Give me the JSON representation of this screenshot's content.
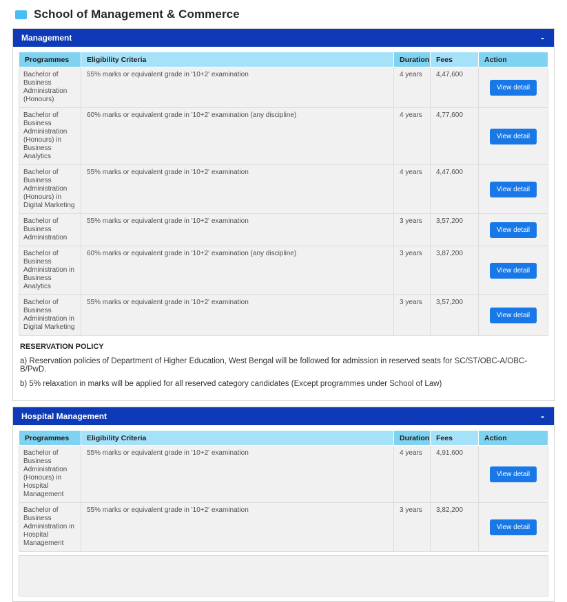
{
  "page": {
    "title": "School of Management & Commerce"
  },
  "ui": {
    "view_detail_label": "View detail",
    "collapse_icon": "-"
  },
  "table": {
    "headers": [
      "Programmes",
      "Eligibility Criteria",
      "Duration",
      "Fees",
      "Action"
    ]
  },
  "sections": [
    {
      "title": "Management",
      "rows": [
        {
          "programme": "Bachelor of Business Administration (Honours)",
          "eligibility": "55% marks or equivalent grade in '10+2' examination",
          "duration": "4 years",
          "fees": "4,47,600"
        },
        {
          "programme": "Bachelor of Business Administration (Honours) in Business Analytics",
          "eligibility": "60% marks or equivalent grade in '10+2' examination (any discipline)",
          "duration": "4 years",
          "fees": "4,77,600"
        },
        {
          "programme": "Bachelor of Business Administration (Honours) in Digital Marketing",
          "eligibility": "55% marks or equivalent grade in '10+2' examination",
          "duration": "4 years",
          "fees": "4,47,600"
        },
        {
          "programme": "Bachelor of Business Administration",
          "eligibility": "55% marks or equivalent grade in '10+2' examination",
          "duration": "3 years",
          "fees": "3,57,200"
        },
        {
          "programme": "Bachelor of Business Administration in Business Analytics",
          "eligibility": "60% marks or equivalent grade in '10+2' examination (any discipline)",
          "duration": "3 years",
          "fees": "3,87,200"
        },
        {
          "programme": "Bachelor of Business Administration in Digital Marketing",
          "eligibility": "55% marks or equivalent grade in '10+2' examination",
          "duration": "3 years",
          "fees": "3,57,200"
        }
      ],
      "reservation_policy": {
        "heading": "RESERVATION POLICY",
        "lines": [
          "a) Reservation policies of Department of Higher Education, West Bengal will be followed for admission in reserved seats for SC/ST/OBC-A/OBC-B/PwD.",
          "b) 5% relaxation in marks will be applied for all reserved category candidates (Except programmes under School of Law)"
        ]
      }
    },
    {
      "title": "Hospital Management",
      "rows": [
        {
          "programme": "Bachelor of Business Administration (Honours) in Hospital Management",
          "eligibility": "55% marks or equivalent grade in '10+2' examination",
          "duration": "4 years",
          "fees": "4,91,600"
        },
        {
          "programme": "Bachelor of Business Administration in Hospital Management",
          "eligibility": "55% marks or equivalent grade in '10+2' examination",
          "duration": "3 years",
          "fees": "3,82,200"
        }
      ],
      "reservation_policy": null
    }
  ],
  "colors": {
    "section_header_bg": "#0e3ab8",
    "table_header_dark": "#7fd2f0",
    "table_header_light": "#a5e1f8",
    "button_bg": "#1878e7",
    "title_icon": "#47bdf0"
  }
}
